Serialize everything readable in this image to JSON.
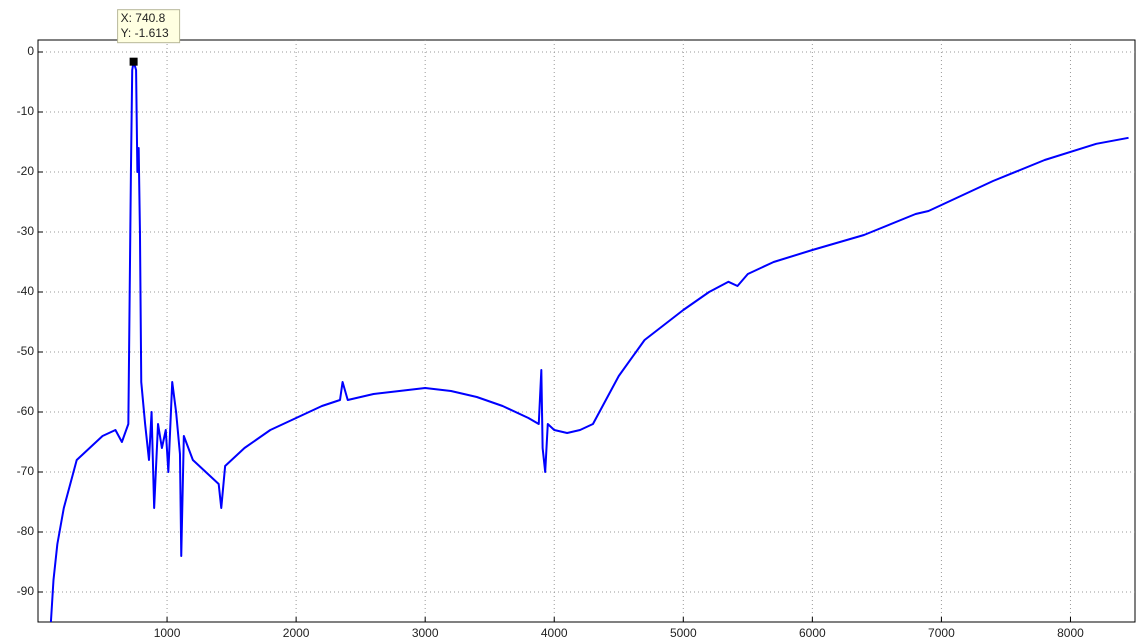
{
  "chart_data": {
    "type": "line",
    "xlim": [
      0,
      8500
    ],
    "ylim": [
      -95,
      2
    ],
    "xticks": [
      1000,
      2000,
      3000,
      4000,
      5000,
      6000,
      7000,
      8000
    ],
    "yticks": [
      -90,
      -80,
      -70,
      -60,
      -50,
      -40,
      -30,
      -20,
      -10,
      0
    ],
    "grid": true,
    "series": [
      {
        "color": "#0000ff",
        "x": [
          100,
          120,
          150,
          200,
          250,
          300,
          400,
          500,
          600,
          650,
          700,
          720,
          730,
          740.8,
          760,
          770,
          780,
          790,
          800,
          830,
          860,
          880,
          900,
          930,
          960,
          990,
          1010,
          1040,
          1070,
          1100,
          1110,
          1130,
          1200,
          1300,
          1400,
          1420,
          1450,
          1600,
          1800,
          2000,
          2200,
          2340,
          2360,
          2400,
          2600,
          2800,
          3000,
          3200,
          3400,
          3600,
          3800,
          3880,
          3900,
          3910,
          3930,
          3950,
          4000,
          4100,
          4200,
          4300,
          4400,
          4500,
          4700,
          5000,
          5200,
          5350,
          5420,
          5500,
          5700,
          6000,
          6400,
          6800,
          6900,
          7000,
          7400,
          7800,
          8200,
          8450
        ],
        "values": [
          -95,
          -88,
          -82,
          -76,
          -72,
          -68,
          -66,
          -64,
          -63,
          -65,
          -62,
          -20,
          -3,
          -1.613,
          -3,
          -20,
          -16,
          -30,
          -55,
          -62,
          -68,
          -60,
          -76,
          -62,
          -66,
          -63,
          -70,
          -55,
          -60,
          -67,
          -84,
          -64,
          -68,
          -70,
          -72,
          -76,
          -69,
          -66,
          -63,
          -61,
          -59,
          -58,
          -55,
          -58,
          -57,
          -56.5,
          -56,
          -56.5,
          -57.5,
          -59,
          -61,
          -62,
          -53,
          -66,
          -70,
          -62,
          -63,
          -63.5,
          -63,
          -62,
          -58,
          -54,
          -48,
          -43,
          -40,
          -38.3,
          -39,
          -37,
          -35,
          -33,
          -30.5,
          -27,
          -26.5,
          -25.5,
          -21.5,
          -18,
          -15.3,
          -14.3
        ]
      }
    ],
    "annotations": [
      {
        "x": 740.8,
        "y": -1.613,
        "label_x": "X: 740.8",
        "label_y": "Y: -1.613"
      }
    ]
  }
}
